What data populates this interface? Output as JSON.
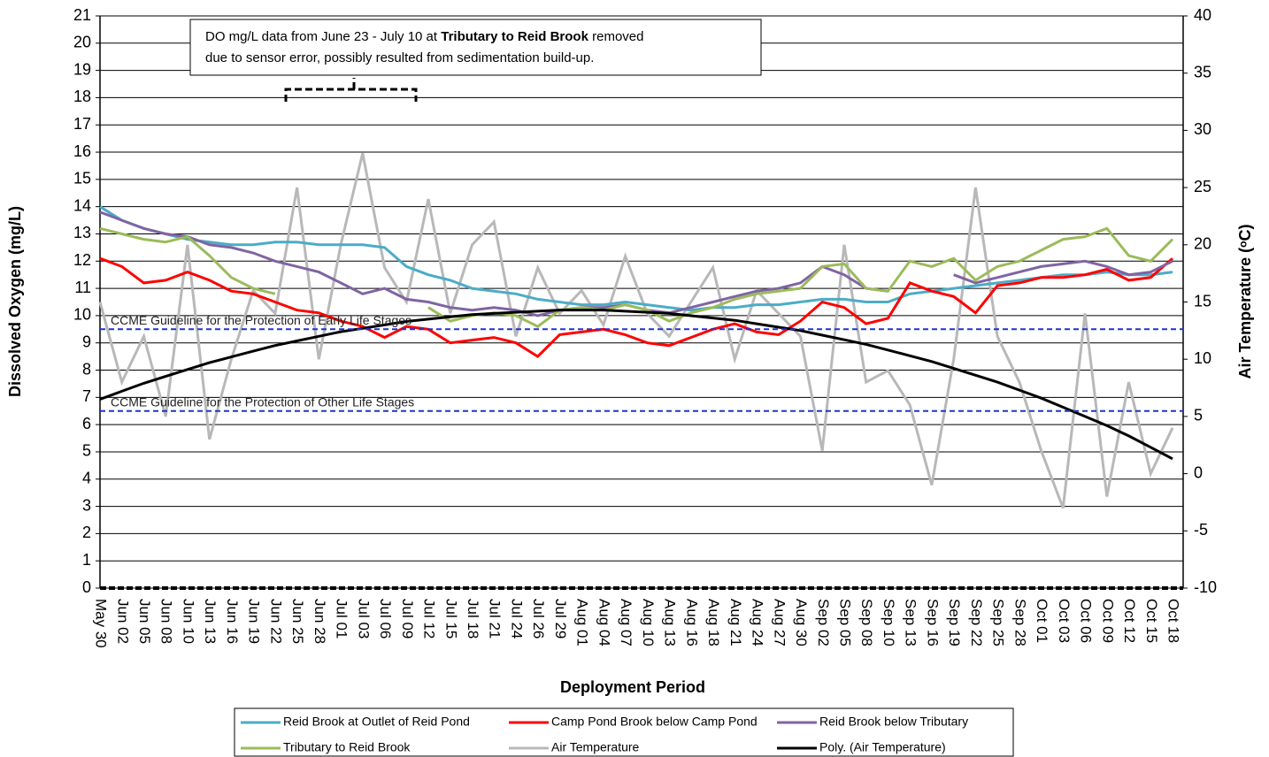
{
  "chart_data": {
    "type": "line",
    "annotation": {
      "line1_start": "DO mg/L data from June 23 - July 10 at ",
      "line1_bold": "Tributary to Reid Brook",
      "line1_end": " removed",
      "line2": "due to sensor error, possibly resulted from sedimentation build-up."
    },
    "x_label": "Deployment Period",
    "y_label": "Dissolved Oxygen (mg/L)",
    "y2_label": "Air Temperature (ᵒC)",
    "categories": [
      "May 30",
      "Jun 02",
      "Jun 05",
      "Jun 08",
      "Jun 10",
      "Jun 13",
      "Jun 16",
      "Jun 19",
      "Jun 22",
      "Jun 25",
      "Jun 28",
      "Jul 01",
      "Jul 03",
      "Jul 06",
      "Jul 09",
      "Jul 12",
      "Jul 15",
      "Jul 18",
      "Jul 21",
      "Jul 24",
      "Jul 26",
      "Jul 29",
      "Aug 01",
      "Aug 04",
      "Aug 07",
      "Aug 10",
      "Aug 13",
      "Aug 16",
      "Aug 18",
      "Aug 21",
      "Aug 24",
      "Aug 27",
      "Aug 30",
      "Sep 02",
      "Sep 05",
      "Sep 08",
      "Sep 10",
      "Sep 13",
      "Sep 16",
      "Sep 19",
      "Sep 22",
      "Sep 25",
      "Sep 28",
      "Oct 01",
      "Oct 03",
      "Oct 06",
      "Oct 09",
      "Oct 12",
      "Oct 15",
      "Oct 18"
    ],
    "ylim": [
      0,
      21
    ],
    "yticks": [
      0,
      1,
      2,
      3,
      4,
      5,
      6,
      7,
      8,
      9,
      10,
      11,
      12,
      13,
      14,
      15,
      16,
      17,
      18,
      19,
      20,
      21
    ],
    "y2lim": [
      -10,
      40
    ],
    "y2ticks": [
      -10,
      -5,
      0,
      5,
      10,
      15,
      20,
      25,
      30,
      35,
      40
    ],
    "grid": true,
    "guidelines": [
      {
        "label": "CCME Guideline for the Protection of Early Life Stages",
        "value": 9.5,
        "color": "#2233cc"
      },
      {
        "label": "CCME Guideline for the Protection of Other Life Stages",
        "value": 6.5,
        "color": "#2233cc"
      }
    ],
    "series": [
      {
        "name": "Air Temperature",
        "color": "#b8b8b8",
        "axis": "y2",
        "values": [
          15,
          8,
          12,
          5,
          20,
          3,
          10,
          16,
          14,
          25,
          10,
          20,
          28,
          18,
          15,
          24,
          14,
          20,
          22,
          12,
          18,
          14,
          16,
          13,
          19,
          14,
          12,
          15,
          18,
          10,
          16,
          14,
          12,
          2,
          20,
          8,
          9,
          6,
          -1,
          10,
          25,
          12,
          8,
          2,
          -3,
          14,
          -2,
          8,
          0,
          4
        ]
      },
      {
        "name": "Reid Brook at Outlet of Reid Pond",
        "color": "#4bacc6",
        "values": [
          14,
          13.5,
          13.2,
          13,
          12.8,
          12.7,
          12.6,
          12.6,
          12.7,
          12.7,
          12.6,
          12.6,
          12.6,
          12.5,
          11.8,
          11.5,
          11.3,
          11,
          10.9,
          10.8,
          10.6,
          10.5,
          10.4,
          10.4,
          10.5,
          10.4,
          10.3,
          10.2,
          10.3,
          10.3,
          10.4,
          10.4,
          10.5,
          10.6,
          10.6,
          10.5,
          10.5,
          10.8,
          10.9,
          11,
          11.1,
          11.2,
          11.3,
          11.4,
          11.5,
          11.5,
          11.6,
          11.5,
          11.5,
          11.6
        ]
      },
      {
        "name": "Camp Pond Brook below Camp Pond",
        "color": "#ff0000",
        "values": [
          12.1,
          11.8,
          11.2,
          11.3,
          11.6,
          11.3,
          10.9,
          10.8,
          10.5,
          10.2,
          10.1,
          9.8,
          9.6,
          9.2,
          9.6,
          9.5,
          9.0,
          9.1,
          9.2,
          9.0,
          8.5,
          9.3,
          9.4,
          9.5,
          9.3,
          9.0,
          8.9,
          9.2,
          9.5,
          9.7,
          9.4,
          9.3,
          9.8,
          10.5,
          10.3,
          9.7,
          9.9,
          11.2,
          10.9,
          10.7,
          10.1,
          11.1,
          11.2,
          11.4,
          11.4,
          11.5,
          11.7,
          11.3,
          11.4,
          12.1
        ]
      },
      {
        "name": "Reid Brook below Tributary",
        "color": "#8064a2",
        "values": [
          13.8,
          13.5,
          13.2,
          13.0,
          12.9,
          12.6,
          12.5,
          12.3,
          12.0,
          11.8,
          11.6,
          11.2,
          10.8,
          11.0,
          10.6,
          10.5,
          10.3,
          10.2,
          10.3,
          10.2,
          10.0,
          10.2,
          10.3,
          10.3,
          10.4,
          10.2,
          10.1,
          10.3,
          10.5,
          10.7,
          10.9,
          11.0,
          11.2,
          11.8,
          11.5,
          11.0,
          10.9,
          null,
          null,
          11.5,
          11.2,
          11.4,
          11.6,
          11.8,
          11.9,
          12.0,
          11.8,
          11.5,
          11.6,
          12.0
        ]
      },
      {
        "name": "Tributary to Reid Brook",
        "color": "#9bbb59",
        "values": [
          13.2,
          13.0,
          12.8,
          12.7,
          12.9,
          12.2,
          11.4,
          11.0,
          10.8,
          null,
          null,
          null,
          null,
          null,
          null,
          10.3,
          9.8,
          10.0,
          10.1,
          10.0,
          9.6,
          10.2,
          10.3,
          10.2,
          10.4,
          10.2,
          9.8,
          10.1,
          10.3,
          10.6,
          10.8,
          10.9,
          11.0,
          11.8,
          11.9,
          11.0,
          10.9,
          12.0,
          11.8,
          12.1,
          11.3,
          11.8,
          12.0,
          12.4,
          12.8,
          12.9,
          13.2,
          12.2,
          12.0,
          12.8
        ]
      },
      {
        "name": "Poly. (Air Temperature)",
        "color": "#000000",
        "axis": "y2",
        "values": [
          6.5,
          7.2,
          7.9,
          8.5,
          9.1,
          9.7,
          10.2,
          10.7,
          11.2,
          11.6,
          12.0,
          12.4,
          12.7,
          13.0,
          13.3,
          13.5,
          13.7,
          13.9,
          14.0,
          14.1,
          14.2,
          14.3,
          14.3,
          14.3,
          14.2,
          14.1,
          14.0,
          13.8,
          13.6,
          13.4,
          13.1,
          12.8,
          12.5,
          12.1,
          11.7,
          11.3,
          10.8,
          10.3,
          9.8,
          9.2,
          8.6,
          8.0,
          7.3,
          6.6,
          5.8,
          5.0,
          4.2,
          3.3,
          2.3,
          1.3
        ]
      }
    ],
    "legend_order": [
      1,
      2,
      3,
      4,
      0,
      5
    ]
  }
}
